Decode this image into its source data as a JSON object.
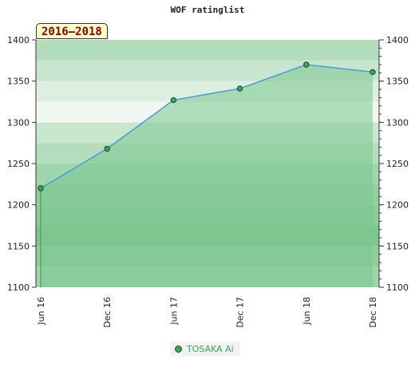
{
  "chart_data": {
    "type": "area",
    "title": "WOF ratinglist",
    "period_label": "2016–2018",
    "x": [
      "Jun 16",
      "Dec 16",
      "Jun 17",
      "Dec 17",
      "Jun 18",
      "Dec 18"
    ],
    "series": [
      {
        "name": "TOSAKA Ai",
        "values": [
          1220,
          1268,
          1327,
          1341,
          1370,
          1361
        ]
      }
    ],
    "ylim": [
      1100,
      1400
    ],
    "y_ticks": [
      1100,
      1150,
      1200,
      1250,
      1300,
      1350,
      1400
    ],
    "y_axis_both_sides": true,
    "grid": true,
    "legend": "bottom-center",
    "colors": {
      "line": "#4c9bd6",
      "fill": "#7cc68f",
      "marker": "#3aa55a"
    }
  }
}
